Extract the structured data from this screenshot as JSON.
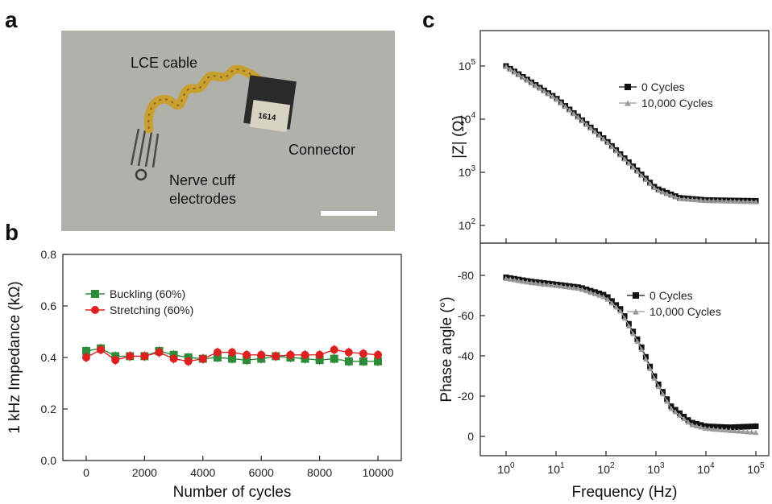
{
  "panels": {
    "a": "a",
    "b": "b",
    "c": "c"
  },
  "photo": {
    "labels": {
      "cable": "LCE cable",
      "connector": "Connector",
      "connector_chip": "1614",
      "cuff_line1": "Nerve cuff",
      "cuff_line2": "electrodes"
    },
    "colors": {
      "background": "#b4b4ae",
      "cable": "#c8a030",
      "connector": "#2a2a2a"
    }
  },
  "chart_data": [
    {
      "type": "line",
      "panel": "b",
      "xlabel": "Number of cycles",
      "ylabel": "1 kHz Impedance (kΩ)",
      "xlim": [
        -800,
        10800
      ],
      "ylim": [
        0.0,
        0.8
      ],
      "xticks": [
        "0",
        "2000",
        "4000",
        "6000",
        "8000",
        "10000"
      ],
      "yticks": [
        "0.0",
        "0.2",
        "0.4",
        "0.6",
        "0.8"
      ],
      "legend_position": "upper-left",
      "x": [
        0,
        500,
        1000,
        1500,
        2000,
        2500,
        3000,
        3500,
        4000,
        4500,
        5000,
        5500,
        6000,
        6500,
        7000,
        7500,
        8000,
        8500,
        9000,
        9500,
        10000
      ],
      "series": [
        {
          "name": "Buckling (60%)",
          "color": "#2e8b3a",
          "marker": "square",
          "values": [
            0.425,
            0.435,
            0.405,
            0.405,
            0.405,
            0.425,
            0.41,
            0.4,
            0.395,
            0.4,
            0.395,
            0.39,
            0.395,
            0.405,
            0.4,
            0.395,
            0.39,
            0.395,
            0.385,
            0.385,
            0.385
          ]
        },
        {
          "name": "Stretching (60%)",
          "color": "#e02020",
          "marker": "circle",
          "values": [
            0.4,
            0.43,
            0.39,
            0.405,
            0.405,
            0.42,
            0.395,
            0.385,
            0.395,
            0.42,
            0.42,
            0.41,
            0.41,
            0.405,
            0.41,
            0.41,
            0.41,
            0.43,
            0.42,
            0.415,
            0.41
          ]
        }
      ]
    },
    {
      "type": "line",
      "panel": "c-top",
      "ylabel": "|Z| (Ω)",
      "xscale": "log",
      "yscale": "log",
      "xlim": [
        1,
        100000
      ],
      "ylim": [
        100,
        100000
      ],
      "yticks": [
        "10^2",
        "10^3",
        "10^4",
        "10^5"
      ],
      "legend_position": "upper-right",
      "series": [
        {
          "name": "0 Cycles",
          "color": "#111111",
          "marker": "square",
          "x": [
            1,
            10,
            100,
            1000,
            3000,
            10000,
            100000
          ],
          "values": [
            100000,
            25000,
            4000,
            500,
            330,
            300,
            290
          ]
        },
        {
          "name": "10,000 Cycles",
          "color": "#9a9a9a",
          "marker": "triangle",
          "x": [
            1,
            10,
            100,
            1000,
            3000,
            10000,
            100000
          ],
          "values": [
            98000,
            24500,
            3900,
            480,
            320,
            295,
            280
          ]
        }
      ]
    },
    {
      "type": "line",
      "panel": "c-bottom",
      "xlabel": "Frequency (Hz)",
      "ylabel": "Phase angle (°)",
      "xscale": "log",
      "xlim": [
        1,
        100000
      ],
      "ylim": [
        -90,
        0
      ],
      "yaxis_inverted": true,
      "xticks": [
        "10^0",
        "10^1",
        "10^2",
        "10^3",
        "10^4",
        "10^5"
      ],
      "yticks": [
        "-80",
        "-60",
        "-40",
        "-20",
        "0"
      ],
      "legend_position": "upper-right",
      "series": [
        {
          "name": "0 Cycles",
          "color": "#111111",
          "marker": "square",
          "x": [
            1,
            3,
            10,
            30,
            100,
            200,
            500,
            1000,
            2000,
            5000,
            10000,
            30000,
            100000
          ],
          "values": [
            -79,
            -77,
            -75.5,
            -74,
            -70,
            -63,
            -45,
            -28,
            -15,
            -7,
            -5,
            -4.5,
            -5
          ]
        },
        {
          "name": "10,000 Cycles",
          "color": "#9a9a9a",
          "marker": "triangle",
          "x": [
            1,
            3,
            10,
            30,
            100,
            200,
            500,
            1000,
            2000,
            5000,
            10000,
            30000,
            100000
          ],
          "values": [
            -78.5,
            -76.5,
            -75,
            -73.5,
            -69,
            -62,
            -44,
            -27,
            -14,
            -6,
            -4,
            -3,
            -2
          ]
        }
      ]
    }
  ]
}
